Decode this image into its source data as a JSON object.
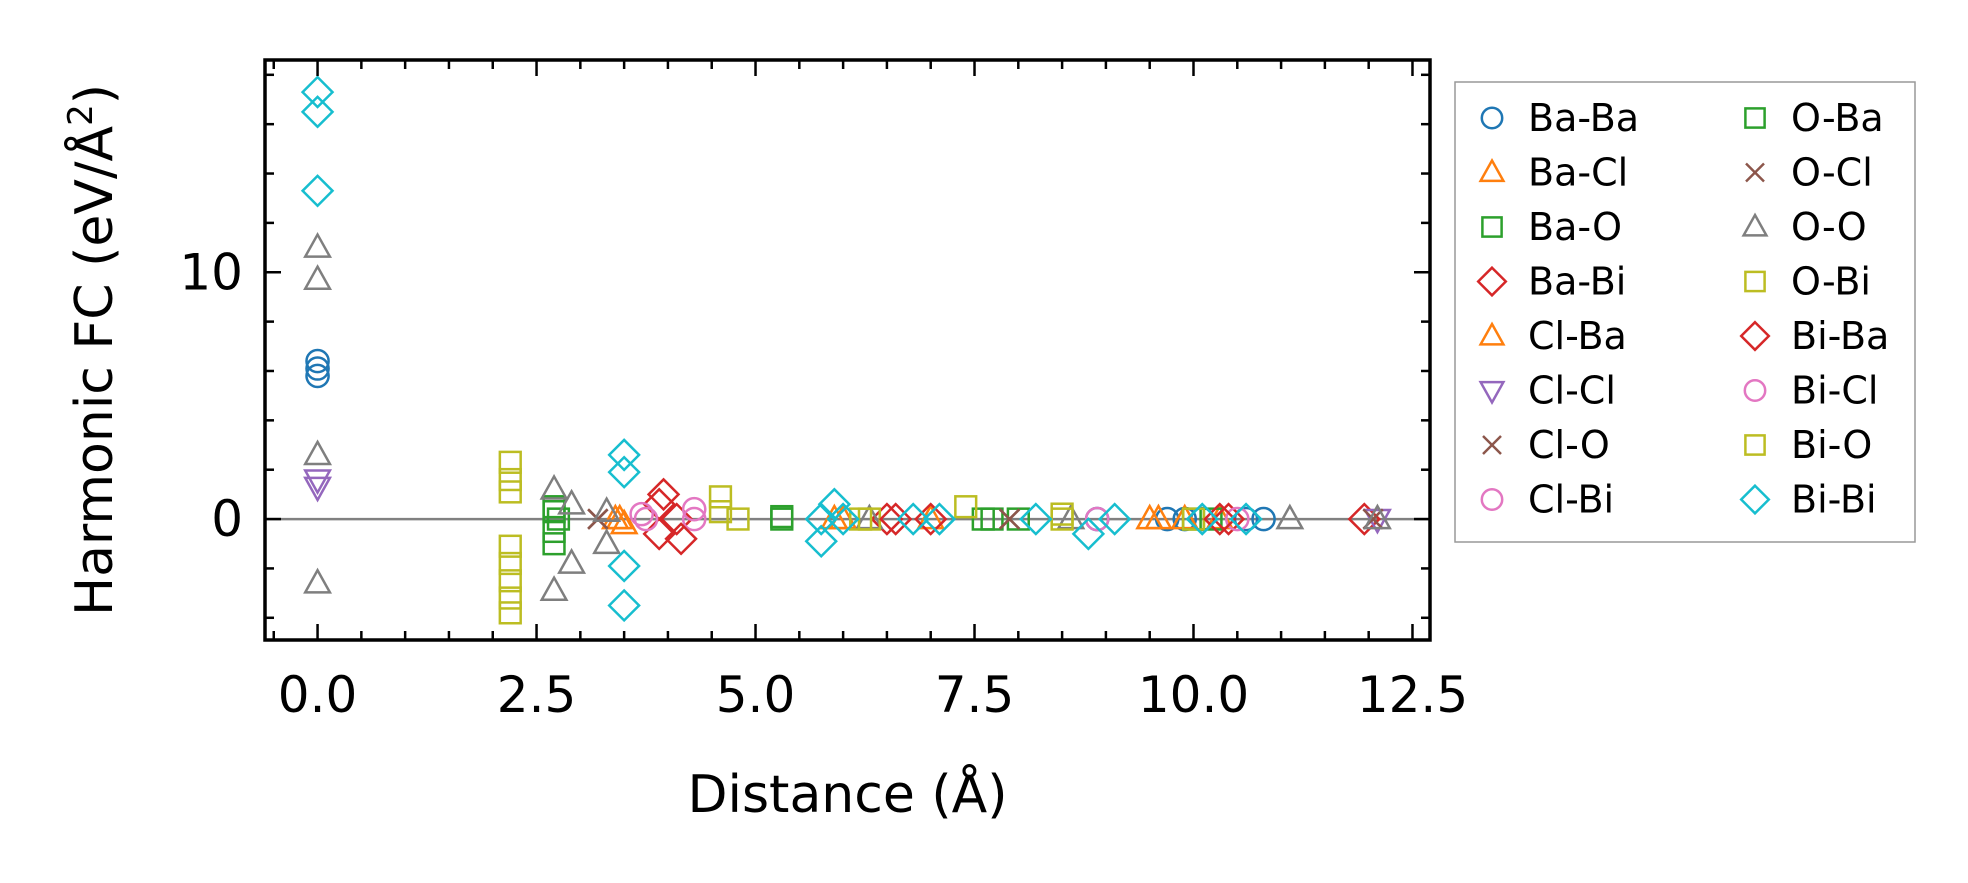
{
  "chart_data": {
    "type": "scatter",
    "xlabel": "Distance (Å)",
    "ylabel_main": "Harmonic FC (eV/Å",
    "ylabel_sup": "2",
    "ylabel_close": ")",
    "xlim": [
      -0.6,
      12.7
    ],
    "ylim": [
      -4.9,
      18.6
    ],
    "x_ticks": [
      {
        "value": 0.0,
        "label": "0.0"
      },
      {
        "value": 2.5,
        "label": "2.5"
      },
      {
        "value": 5.0,
        "label": "5.0"
      },
      {
        "value": 7.5,
        "label": "7.5"
      },
      {
        "value": 10.0,
        "label": "10.0"
      },
      {
        "value": 12.5,
        "label": "12.5"
      }
    ],
    "y_ticks": [
      {
        "value": 0,
        "label": "0"
      },
      {
        "value": 10,
        "label": "10"
      }
    ],
    "x_minor_step": 0.5,
    "y_minor_step": 2,
    "reference_line_y": 0,
    "legend": {
      "position": "outside-right",
      "columns": 2
    },
    "series": [
      {
        "name": "Ba-Ba",
        "marker": "circle",
        "color": "#1f77b4",
        "filled": false,
        "points": [
          [
            0,
            6.4
          ],
          [
            0,
            6.1
          ],
          [
            0,
            5.8
          ],
          [
            9.7,
            0
          ],
          [
            9.9,
            0
          ],
          [
            10.1,
            0
          ],
          [
            10.6,
            0
          ],
          [
            10.8,
            0
          ],
          [
            8.9,
            0
          ]
        ]
      },
      {
        "name": "Ba-Cl",
        "marker": "triangle-up",
        "color": "#ff7f0e",
        "filled": false,
        "points": [
          [
            3.4,
            0
          ],
          [
            3.5,
            -0.2
          ],
          [
            5.9,
            0
          ],
          [
            7.0,
            0
          ],
          [
            9.5,
            0
          ],
          [
            9.9,
            0
          ],
          [
            10.3,
            0
          ]
        ]
      },
      {
        "name": "Ba-O",
        "marker": "square",
        "color": "#2ca02c",
        "filled": false,
        "points": [
          [
            2.7,
            0.5
          ],
          [
            2.7,
            -1.0
          ],
          [
            2.75,
            0
          ],
          [
            5.3,
            0
          ],
          [
            7.7,
            0
          ],
          [
            8.0,
            0
          ],
          [
            10.2,
            0
          ]
        ]
      },
      {
        "name": "Ba-Bi",
        "marker": "diamond",
        "color": "#d62728",
        "filled": false,
        "points": [
          [
            3.9,
            0.6
          ],
          [
            3.9,
            -0.6
          ],
          [
            4.1,
            0
          ],
          [
            6.5,
            0
          ],
          [
            7.0,
            0
          ],
          [
            10.4,
            0
          ],
          [
            11.95,
            0
          ]
        ]
      },
      {
        "name": "Cl-Ba",
        "marker": "triangle-up",
        "color": "#ff7f0e",
        "filled": false,
        "points": [
          [
            3.45,
            0
          ],
          [
            6.0,
            0
          ],
          [
            9.6,
            0
          ]
        ]
      },
      {
        "name": "Cl-Cl",
        "marker": "triangle-down",
        "color": "#9467bd",
        "filled": false,
        "points": [
          [
            0,
            1.6
          ],
          [
            0,
            1.3
          ],
          [
            12.1,
            0
          ]
        ]
      },
      {
        "name": "Cl-O",
        "marker": "x",
        "color": "#8c564b",
        "filled": false,
        "points": [
          [
            3.2,
            0
          ],
          [
            7.9,
            0
          ],
          [
            12.05,
            0
          ]
        ]
      },
      {
        "name": "Cl-Bi",
        "marker": "circle",
        "color": "#e377c2",
        "filled": false,
        "points": [
          [
            3.7,
            0.2
          ],
          [
            4.3,
            0
          ],
          [
            10.5,
            0
          ]
        ]
      },
      {
        "name": "O-Ba",
        "marker": "square",
        "color": "#2ca02c",
        "filled": false,
        "points": [
          [
            2.7,
            0.3
          ],
          [
            2.7,
            -0.5
          ],
          [
            5.3,
            0.1
          ],
          [
            7.6,
            0
          ],
          [
            10.0,
            0
          ]
        ]
      },
      {
        "name": "O-Cl",
        "marker": "x",
        "color": "#8c564b",
        "filled": false,
        "points": [
          [
            3.2,
            0
          ],
          [
            7.9,
            0
          ]
        ]
      },
      {
        "name": "O-O",
        "marker": "triangle-up",
        "color": "#7f7f7f",
        "filled": false,
        "points": [
          [
            0,
            11.0
          ],
          [
            0,
            9.7
          ],
          [
            0,
            2.6
          ],
          [
            0,
            -2.6
          ],
          [
            2.7,
            1.2
          ],
          [
            2.7,
            -2.9
          ],
          [
            2.9,
            0.6
          ],
          [
            2.9,
            -1.8
          ],
          [
            3.3,
            0.3
          ],
          [
            3.3,
            -1.0
          ],
          [
            6.3,
            0
          ],
          [
            8.6,
            0
          ],
          [
            11.1,
            0
          ],
          [
            12.1,
            0
          ]
        ]
      },
      {
        "name": "O-Bi",
        "marker": "square",
        "color": "#bcbd22",
        "filled": false,
        "points": [
          [
            2.2,
            2.3
          ],
          [
            2.2,
            1.6
          ],
          [
            2.2,
            1.1
          ],
          [
            2.2,
            -1.1
          ],
          [
            2.2,
            -1.8
          ],
          [
            2.2,
            -2.5
          ],
          [
            2.2,
            -3.2
          ],
          [
            2.2,
            -3.8
          ],
          [
            4.6,
            0.9
          ],
          [
            6.3,
            0
          ],
          [
            7.4,
            0.5
          ],
          [
            8.5,
            0.2
          ],
          [
            10.0,
            0
          ]
        ]
      },
      {
        "name": "Bi-Ba",
        "marker": "diamond",
        "color": "#d62728",
        "filled": false,
        "points": [
          [
            3.95,
            1.0
          ],
          [
            4.15,
            -0.8
          ],
          [
            6.6,
            0
          ],
          [
            10.3,
            0
          ]
        ]
      },
      {
        "name": "Bi-Cl",
        "marker": "circle",
        "color": "#e377c2",
        "filled": false,
        "points": [
          [
            3.75,
            0
          ],
          [
            4.3,
            0.4
          ],
          [
            8.9,
            0
          ]
        ]
      },
      {
        "name": "Bi-O",
        "marker": "square",
        "color": "#bcbd22",
        "filled": false,
        "points": [
          [
            4.6,
            0.3
          ],
          [
            4.8,
            0
          ],
          [
            6.2,
            0
          ],
          [
            8.5,
            0
          ]
        ]
      },
      {
        "name": "Bi-Bi",
        "marker": "diamond",
        "color": "#17becf",
        "filled": false,
        "points": [
          [
            0,
            17.3
          ],
          [
            0,
            16.5
          ],
          [
            0,
            13.3
          ],
          [
            3.5,
            2.6
          ],
          [
            3.5,
            1.9
          ],
          [
            3.5,
            -1.9
          ],
          [
            3.5,
            -3.5
          ],
          [
            5.75,
            -0.9
          ],
          [
            5.75,
            0
          ],
          [
            5.9,
            0.6
          ],
          [
            6.0,
            0
          ],
          [
            6.8,
            0
          ],
          [
            7.1,
            0
          ],
          [
            8.2,
            0
          ],
          [
            8.8,
            -0.6
          ],
          [
            9.1,
            0
          ],
          [
            10.1,
            0
          ],
          [
            10.6,
            0
          ]
        ]
      }
    ]
  }
}
